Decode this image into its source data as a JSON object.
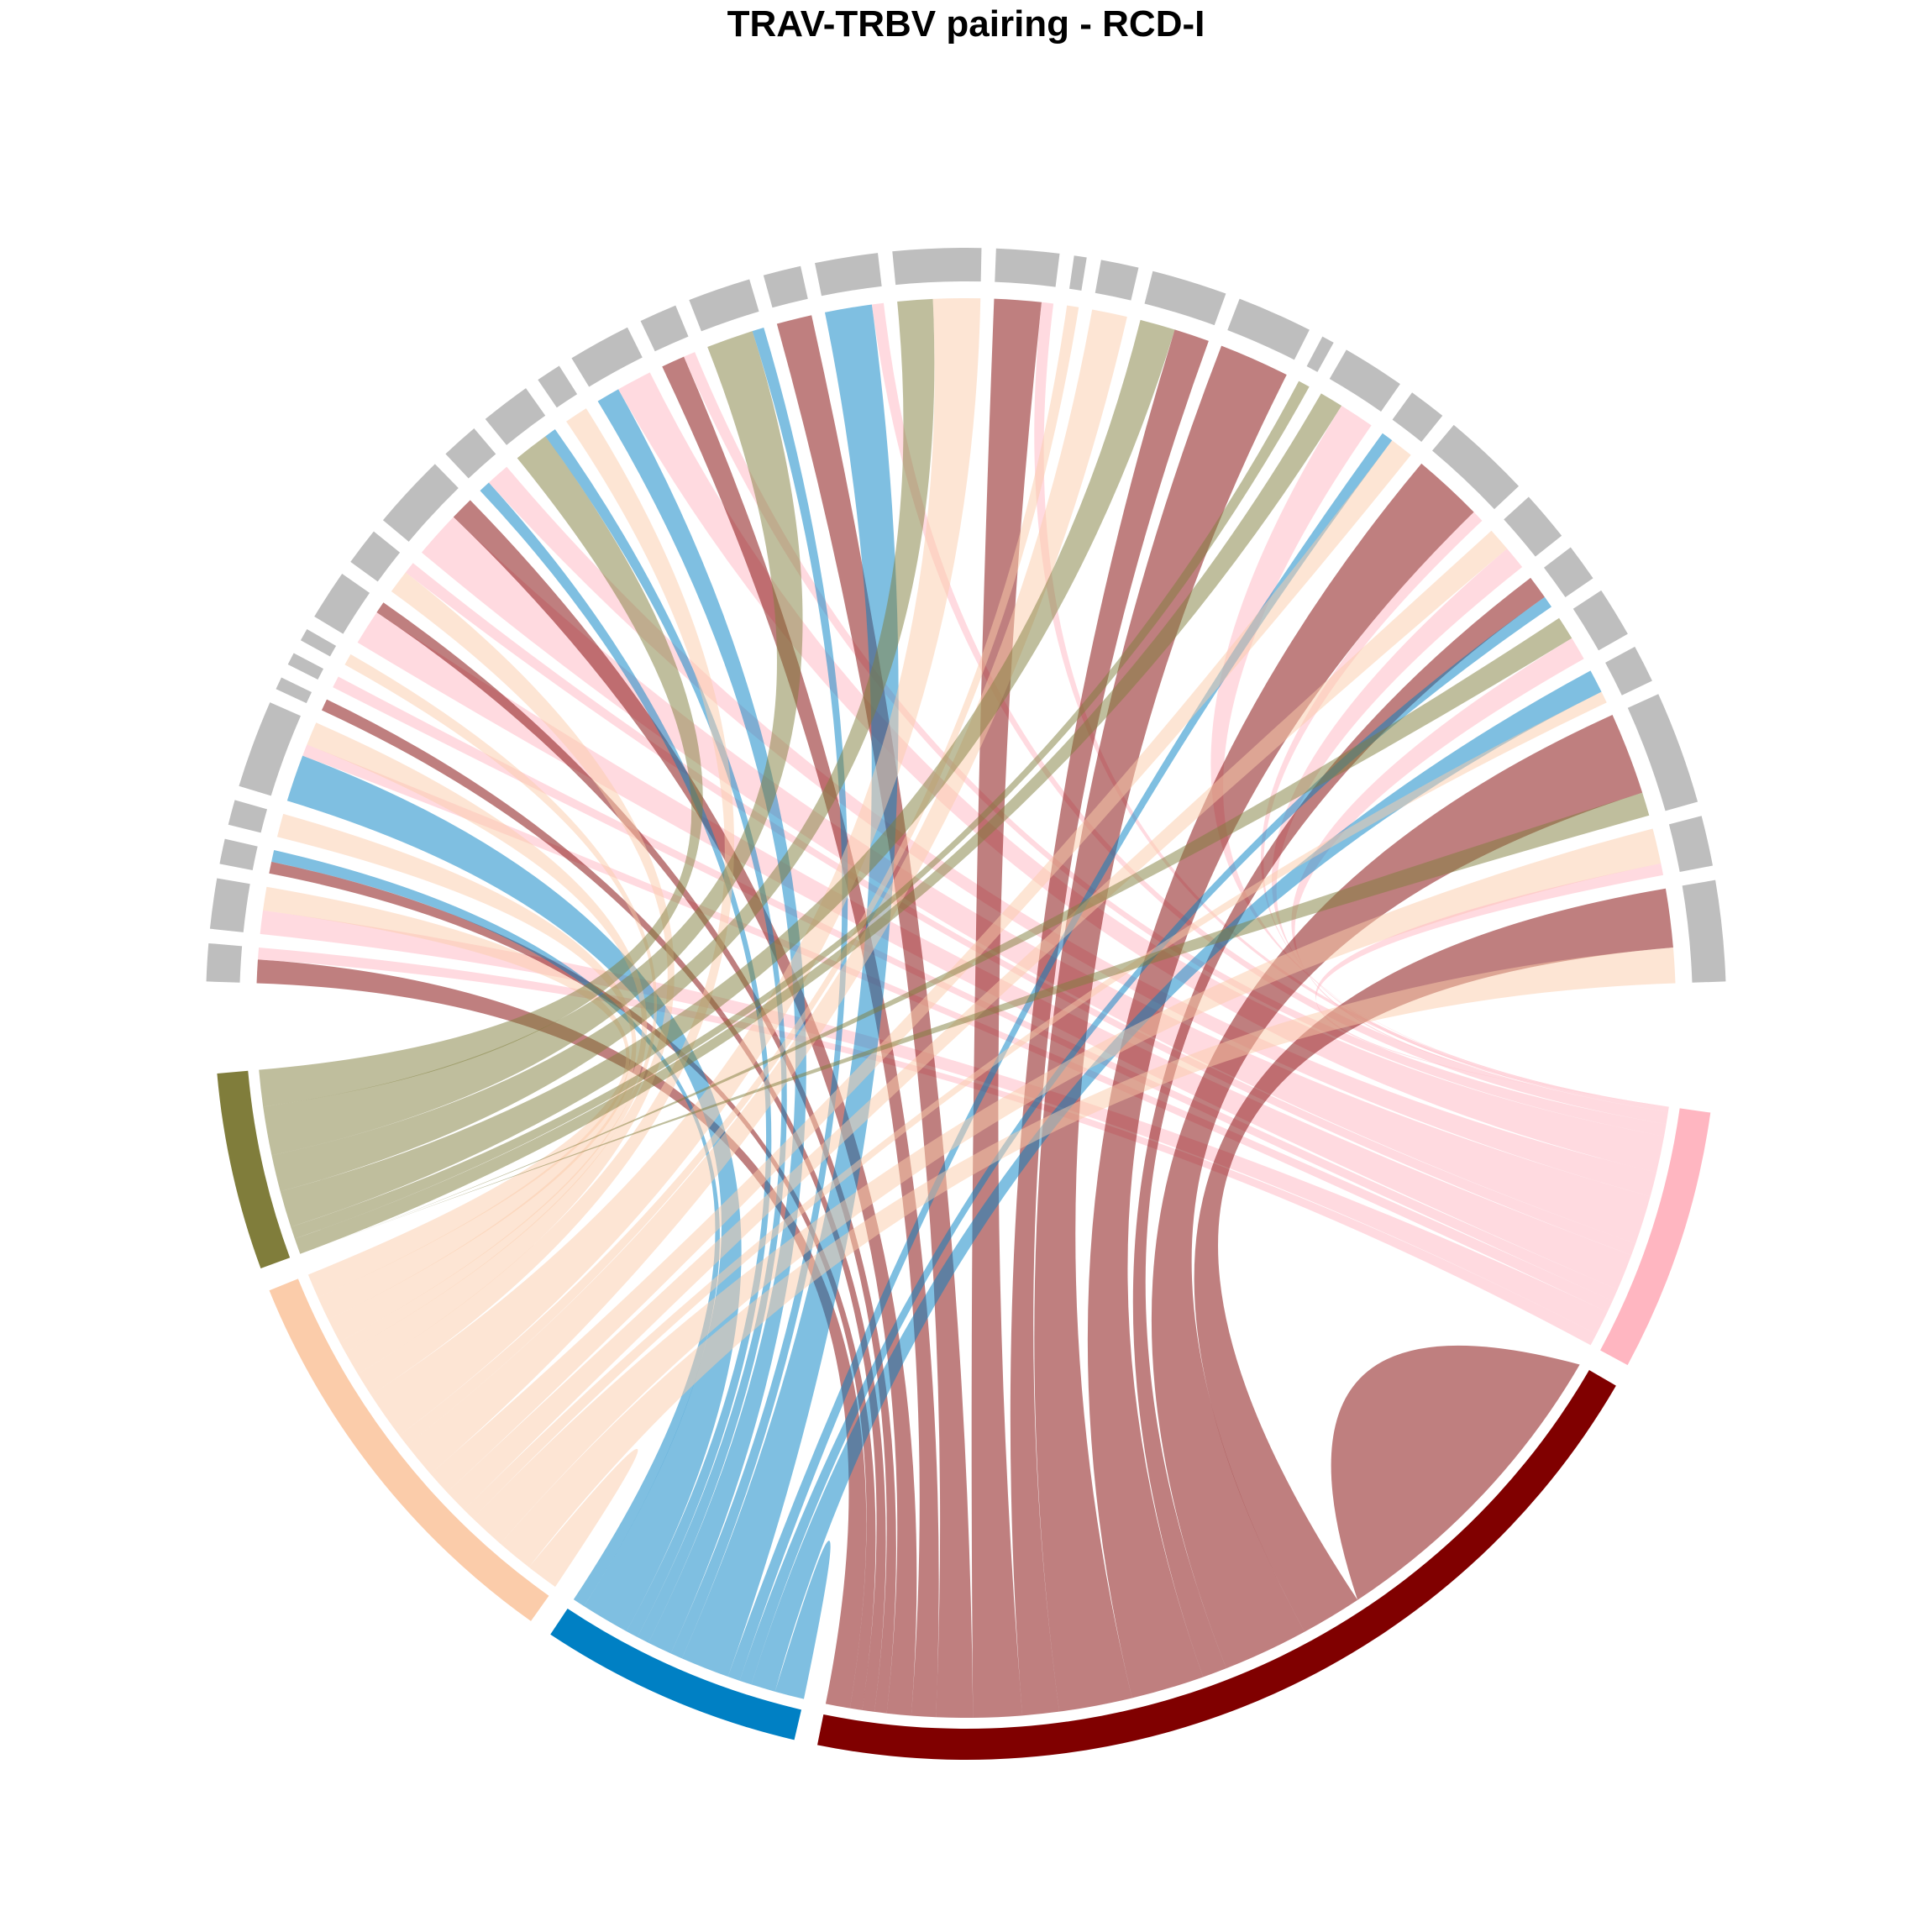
{
  "chart_data": {
    "type": "chord",
    "title": "TRAV-TRBV pairing - RCD-I",
    "chain_colors": [
      "#807D3B",
      "#FBCCAA",
      "#0080C4",
      "#800000",
      "#FFB6C1"
    ],
    "link_opacity": 0.5,
    "grey_color": "#BEBEBE",
    "colored_sectors": [
      {
        "color": "#807D3B",
        "value": 7.5
      },
      {
        "color": "#FBCCAA",
        "value": 16.0
      },
      {
        "color": "#0080C4",
        "value": 10.0
      },
      {
        "color": "#800000",
        "value": 35.0
      },
      {
        "color": "#FFB6C1",
        "value": 10.0
      }
    ],
    "grey_sectors": [
      {
        "value": 1.5,
        "links": [
          [
            3,
            1.0
          ],
          [
            4,
            0.5
          ]
        ]
      },
      {
        "value": 2.0,
        "links": [
          [
            4,
            1.0
          ],
          [
            1,
            1.0
          ]
        ]
      },
      {
        "value": 1.0,
        "links": [
          [
            3,
            0.5
          ],
          [
            2,
            0.5
          ]
        ]
      },
      {
        "value": 1.0,
        "links": [
          [
            1,
            1.0
          ]
        ]
      },
      {
        "value": 3.5,
        "links": [
          [
            2,
            2.0
          ],
          [
            4,
            0.5
          ],
          [
            1,
            1.0
          ]
        ]
      },
      {
        "value": 0.5,
        "links": [
          [
            3,
            0.5
          ]
        ]
      },
      {
        "value": 0.5,
        "links": [
          [
            4,
            0.5
          ]
        ]
      },
      {
        "value": 0.5,
        "links": [
          [
            1,
            0.5
          ]
        ]
      },
      {
        "value": 2.0,
        "links": [
          [
            4,
            1.5
          ],
          [
            3,
            0.5
          ]
        ]
      },
      {
        "value": 1.5,
        "links": [
          [
            1,
            1.0
          ],
          [
            4,
            0.5
          ]
        ]
      },
      {
        "value": 3.0,
        "links": [
          [
            4,
            2.0
          ],
          [
            3,
            1.0
          ]
        ]
      },
      {
        "value": 1.5,
        "links": [
          [
            2,
            0.5
          ],
          [
            4,
            1.0
          ]
        ]
      },
      {
        "value": 2.0,
        "links": [
          [
            0,
            1.5
          ],
          [
            2,
            0.5
          ]
        ]
      },
      {
        "value": 1.0,
        "links": [
          [
            1,
            1.0
          ]
        ]
      },
      {
        "value": 2.5,
        "links": [
          [
            2,
            1.0
          ],
          [
            4,
            1.5
          ]
        ]
      },
      {
        "value": 1.5,
        "links": [
          [
            3,
            1.0
          ],
          [
            4,
            0.5
          ]
        ]
      },
      {
        "value": 2.5,
        "links": [
          [
            0,
            2.0
          ],
          [
            2,
            0.5
          ]
        ]
      },
      {
        "value": 1.5,
        "links": [
          [
            3,
            1.5
          ]
        ]
      },
      {
        "value": 2.5,
        "links": [
          [
            2,
            2.0
          ],
          [
            4,
            0.5
          ]
        ]
      },
      {
        "value": 3.5,
        "links": [
          [
            0,
            1.5
          ],
          [
            1,
            2.0
          ]
        ]
      },
      {
        "value": 2.5,
        "links": [
          [
            3,
            2.0
          ],
          [
            4,
            0.5
          ]
        ]
      },
      {
        "value": 0.5,
        "links": [
          [
            1,
            0.5
          ]
        ]
      },
      {
        "value": 1.5,
        "links": [
          [
            1,
            1.5
          ]
        ]
      },
      {
        "value": 3.0,
        "links": [
          [
            0,
            1.5
          ],
          [
            3,
            1.5
          ]
        ]
      },
      {
        "value": 3.0,
        "links": [
          [
            3,
            3.0
          ]
        ]
      },
      {
        "value": 0.5,
        "links": [
          [
            0,
            0.5
          ]
        ]
      },
      {
        "value": 2.5,
        "links": [
          [
            0,
            1.0
          ],
          [
            4,
            1.5
          ]
        ]
      },
      {
        "value": 1.5,
        "links": [
          [
            2,
            0.5
          ],
          [
            1,
            1.0
          ]
        ]
      },
      {
        "value": 3.5,
        "links": [
          [
            3,
            3.0
          ],
          [
            4,
            0.5
          ]
        ]
      },
      {
        "value": 2.0,
        "links": [
          [
            1,
            1.0
          ],
          [
            4,
            1.0
          ]
        ]
      },
      {
        "value": 1.5,
        "links": [
          [
            3,
            1.0
          ],
          [
            2,
            0.5
          ]
        ]
      },
      {
        "value": 2.0,
        "links": [
          [
            0,
            1.0
          ],
          [
            4,
            1.0
          ]
        ]
      },
      {
        "value": 1.5,
        "links": [
          [
            2,
            1.0
          ],
          [
            1,
            0.5
          ]
        ]
      },
      {
        "value": 4.5,
        "links": [
          [
            3,
            3.5
          ],
          [
            0,
            1.0
          ]
        ]
      },
      {
        "value": 2.0,
        "links": [
          [
            1,
            1.5
          ],
          [
            4,
            0.5
          ]
        ]
      },
      {
        "value": 4.0,
        "links": [
          [
            3,
            2.5
          ],
          [
            1,
            1.5
          ]
        ]
      }
    ]
  }
}
